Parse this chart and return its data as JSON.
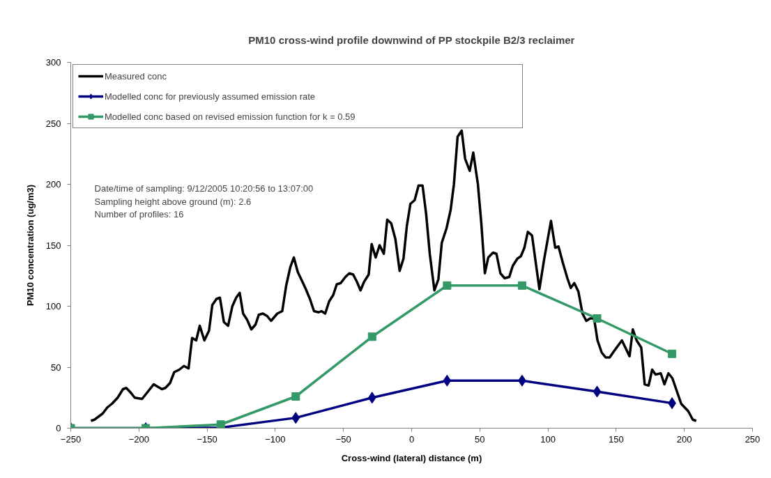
{
  "chart_data": {
    "type": "line",
    "title": "PM10 cross-wind profile downwind of PP stockpile B2/3 reclaimer",
    "xlabel": "Cross-wind (lateral) distance (m)",
    "ylabel": "PM10 concentration (ug/m3)",
    "xlim": [
      -250,
      250
    ],
    "ylim": [
      0,
      300
    ],
    "xticks": [
      -250,
      -200,
      -150,
      -100,
      -50,
      0,
      50,
      100,
      150,
      200,
      250
    ],
    "yticks": [
      0,
      50,
      100,
      150,
      200,
      250,
      300
    ],
    "legend": "top left",
    "annotations": [
      "Date/time of sampling: 9/12/2005 10:20:56 to 13:07:00",
      "Sampling height above ground (m): 2.6",
      "Number of profiles: 16"
    ],
    "series": [
      {
        "name": "Measured conc",
        "color": "#000000",
        "marker": "none",
        "x": [
          -235.2,
          -232.6,
          -226.6,
          -223.2,
          -219.8,
          -215.6,
          -211.7,
          -209.3,
          -205.9,
          -203.1,
          -197.7,
          -193.4,
          -189.2,
          -183.2,
          -180.6,
          -177.2,
          -174.1,
          -170.4,
          -167.0,
          -163.6,
          -161.0,
          -158.0,
          -155.4,
          -152.0,
          -148.6,
          -146.2,
          -143.1,
          -140.6,
          -137.7,
          -134.6,
          -131.5,
          -128.7,
          -126.1,
          -123.6,
          -120.7,
          -117.6,
          -114.5,
          -112.1,
          -109.1,
          -106.0,
          -103.1,
          -98.5,
          -94.9,
          -92.0,
          -89.0,
          -86.4,
          -83.5,
          -80.9,
          -77.6,
          -74.6,
          -71.6,
          -68.2,
          -66.1,
          -63.4,
          -60.5,
          -57.6,
          -54.9,
          -52.0,
          -48.6,
          -45.7,
          -42.9,
          -40.1,
          -37.5,
          -34.9,
          -31.5,
          -29.3,
          -26.4,
          -23.5,
          -20.4,
          -17.9,
          -15.0,
          -11.9,
          -8.8,
          -6.0,
          -3.5,
          -0.9,
          2.2,
          5.1,
          8.0,
          10.6,
          13.3,
          16.7,
          19.6,
          22.1,
          25.6,
          28.6,
          31.0,
          33.7,
          36.7,
          39.2,
          42.6,
          45.2,
          48.6,
          51.1,
          53.7,
          56.2,
          59.7,
          62.2,
          65.1,
          68.2,
          71.6,
          74.1,
          77.5,
          80.1,
          82.7,
          85.2,
          88.3,
          93.7,
          97.1,
          102.2,
          105.3,
          107.7,
          110.8,
          114.2,
          116.7,
          119.3,
          122.3,
          125.3,
          128.1,
          130.9,
          133.8,
          136.3,
          139.4,
          142.3,
          145.2,
          148.3,
          154.2,
          159.8,
          162.2,
          165.0,
          168.4,
          170.9,
          173.8,
          176.4,
          178.9,
          182.7,
          185.4,
          188.3,
          191.2,
          194.3,
          197.7,
          202.8,
          206.2,
          208.7
        ],
        "values": [
          6,
          7,
          12,
          17,
          20,
          25,
          32,
          33,
          29,
          25,
          24,
          30,
          36,
          32,
          33,
          37,
          46,
          48,
          51,
          49,
          74,
          72,
          84,
          72,
          80,
          101,
          106,
          107,
          87,
          84,
          100,
          107,
          111,
          94,
          89,
          81,
          85,
          93,
          94,
          92,
          88,
          94,
          96,
          117,
          132,
          140,
          128,
          122,
          114,
          106,
          96,
          95,
          96,
          94,
          104,
          109,
          118,
          119,
          124,
          127,
          126,
          120,
          113,
          120,
          126,
          151,
          140,
          150,
          143,
          171,
          168,
          155,
          129,
          139,
          166,
          184,
          187,
          199,
          199,
          176,
          143,
          113,
          122,
          152,
          164,
          179,
          200,
          239,
          244,
          221,
          211,
          226,
          200,
          168,
          127,
          140,
          144,
          143,
          127,
          123,
          124,
          133,
          139,
          141,
          148,
          161,
          158,
          114,
          138,
          170,
          148,
          149,
          136,
          123,
          115,
          119,
          112,
          94,
          88,
          90,
          90,
          72,
          62,
          58,
          58,
          63,
          72,
          59,
          81,
          72,
          66,
          36,
          35,
          48,
          44,
          45,
          36,
          45,
          41,
          31,
          20,
          14,
          7,
          6
        ]
      },
      {
        "name": "Modelled conc for previously assumed emission rate",
        "color": "#000080",
        "marker": "diamond",
        "x": [
          -250,
          -195,
          -140,
          -85,
          -29,
          26,
          81,
          136,
          191
        ],
        "values": [
          0,
          0,
          0.5,
          8.5,
          25,
          39,
          39,
          30,
          20.5
        ]
      },
      {
        "name": "Modelled conc based on revised emission function for k = 0.59",
        "color": "#339966",
        "marker": "square",
        "x": [
          -250,
          -195,
          -140,
          -85,
          -29,
          26,
          81,
          136,
          191
        ],
        "values": [
          0,
          0,
          3,
          26,
          75,
          117,
          117,
          90,
          61
        ]
      }
    ]
  }
}
